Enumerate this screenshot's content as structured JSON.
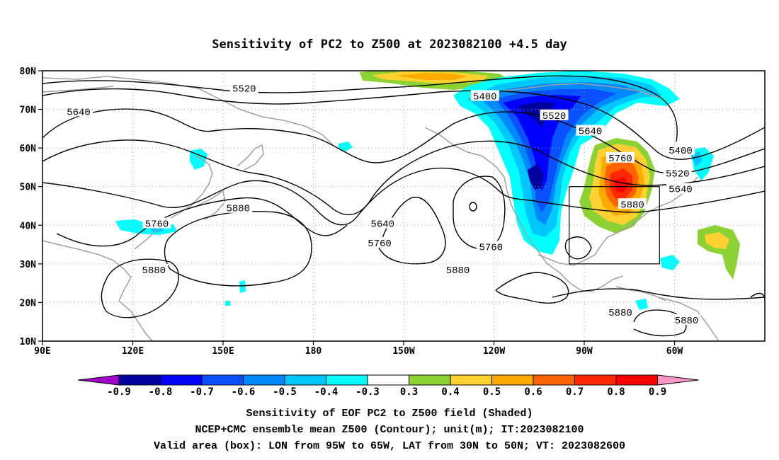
{
  "title": "Sensitivity of PC2 to Z500 at 2023082100 +4.5 day",
  "lat_ticks": [
    "80N",
    "70N",
    "60N",
    "50N",
    "40N",
    "30N",
    "20N",
    "10N"
  ],
  "lon_ticks": [
    "90E",
    "120E",
    "150E",
    "180",
    "150W",
    "120W",
    "90W",
    "60W"
  ],
  "contour_labels": [
    {
      "text": "5400",
      "lon": 237,
      "lat": 73.5
    },
    {
      "text": "5520",
      "lon": 260,
      "lat": 68.5
    },
    {
      "text": "5640",
      "lon": 272,
      "lat": 64.5
    },
    {
      "text": "5760",
      "lon": 282,
      "lat": 57.5
    },
    {
      "text": "5880",
      "lon": 286,
      "lat": 45.5
    },
    {
      "text": "5520",
      "lon": 157,
      "lat": 75.5
    },
    {
      "text": "5640",
      "lon": 102,
      "lat": 69.5
    },
    {
      "text": "5760",
      "lon": 128,
      "lat": 40.5
    },
    {
      "text": "5880",
      "lon": 155,
      "lat": 44.5
    },
    {
      "text": "5880",
      "lon": 127,
      "lat": 28.5
    },
    {
      "text": "5640",
      "lon": 203,
      "lat": 40.5
    },
    {
      "text": "5760",
      "lon": 202,
      "lat": 35.5
    },
    {
      "text": "5760",
      "lon": 239,
      "lat": 34.5
    },
    {
      "text": "5880",
      "lon": 228,
      "lat": 28.5
    },
    {
      "text": "5880",
      "lon": 282,
      "lat": 17.5
    },
    {
      "text": "5400",
      "lon": 302,
      "lat": 59.5
    },
    {
      "text": "5520",
      "lon": 301,
      "lat": 53.5
    },
    {
      "text": "5640",
      "lon": 302,
      "lat": 49.5
    },
    {
      "text": "5880",
      "lon": 304,
      "lat": 15.5
    }
  ],
  "valid_box": {
    "lon_min": 265,
    "lon_max": 295,
    "lat_min": 30,
    "lat_max": 50
  },
  "colorbar": {
    "colors": [
      "#a000c8",
      "#00009f",
      "#0000ff",
      "#0a50ff",
      "#0088ff",
      "#00c8ff",
      "#00ffff",
      "#ffffff",
      "#8cd232",
      "#ffd232",
      "#ffaa00",
      "#ff6400",
      "#ff2800",
      "#ff0000",
      "#ff96c8"
    ],
    "labels": [
      "-0.9",
      "-0.8",
      "-0.7",
      "-0.6",
      "-0.5",
      "-0.4",
      "-0.3",
      "0.3",
      "0.4",
      "0.5",
      "0.6",
      "0.7",
      "0.8",
      "0.9"
    ]
  },
  "caption": {
    "line1": "Sensitivity of EOF PC2 to Z500 field (Shaded)",
    "line2": "NCEP+CMC ensemble mean Z500 (Contour); unit(m); IT:2023082100",
    "line3": "Valid area (box): LON from 95W to 65W, LAT from 30N to 50N; VT: 2023082600"
  }
}
